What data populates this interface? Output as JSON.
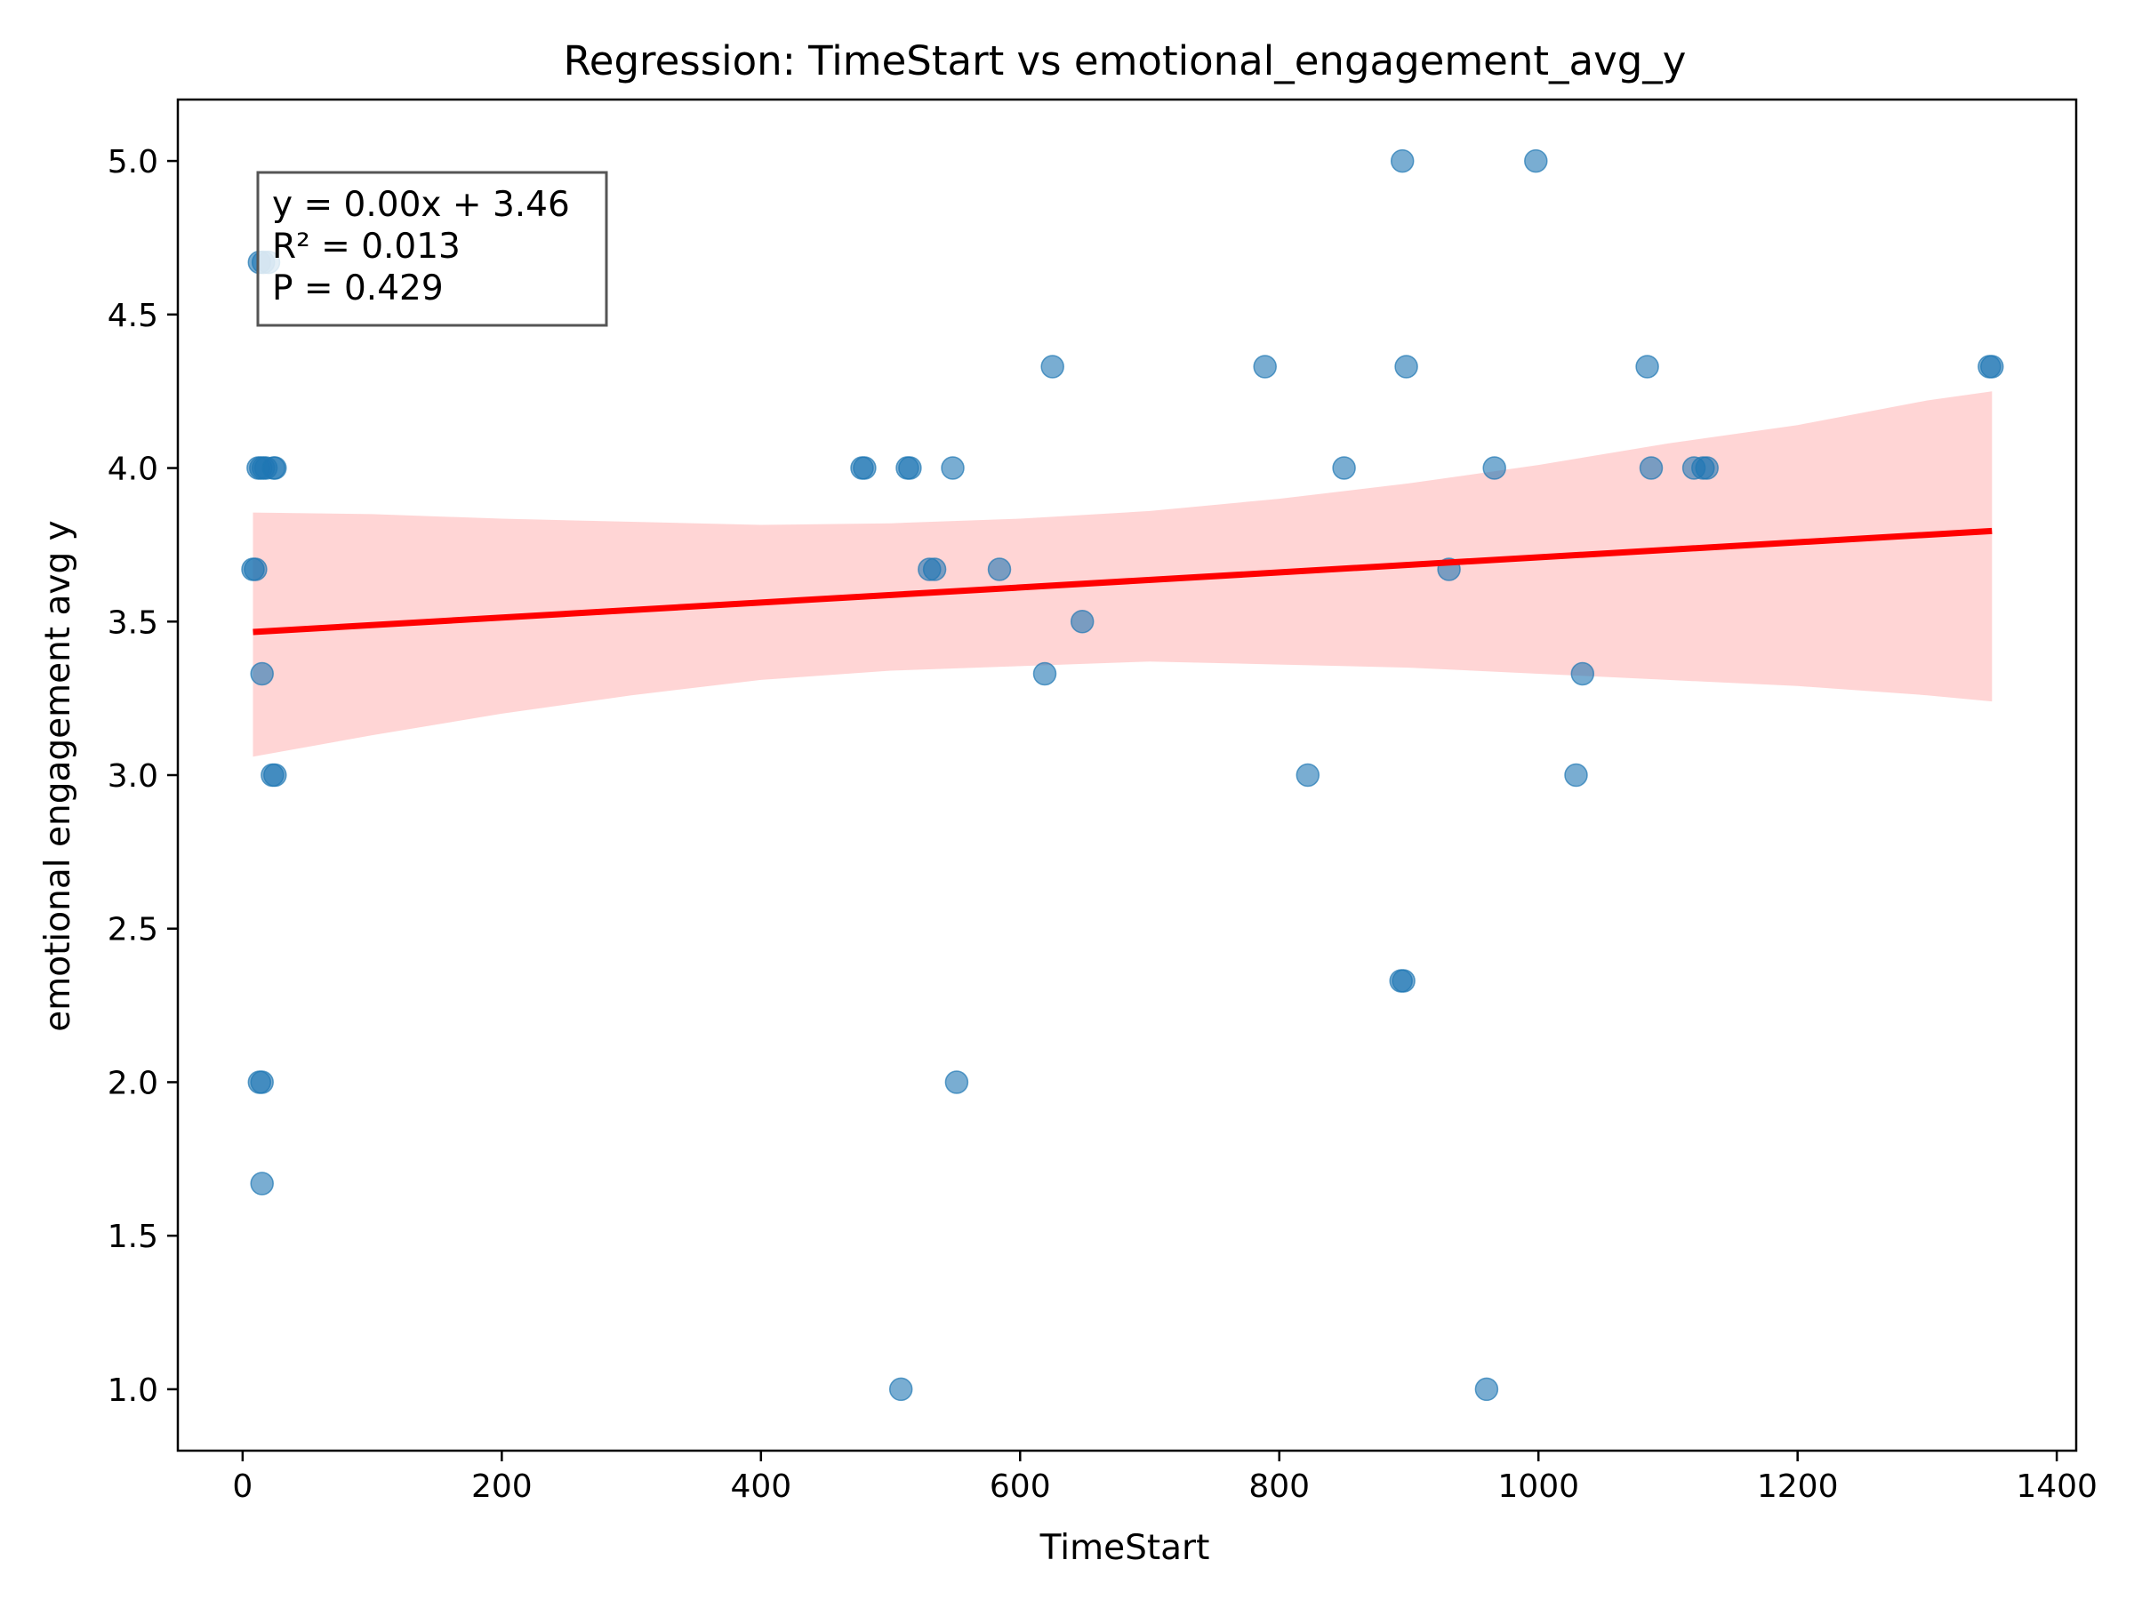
{
  "chart_data": {
    "type": "scatter",
    "title": "Regression: TimeStart vs emotional_engagement_avg_y",
    "xlabel": "TimeStart",
    "ylabel": "emotional engagement avg y",
    "xlim": [
      -50,
      1415
    ],
    "ylim": [
      0.8,
      5.2
    ],
    "xticks": [
      0,
      200,
      400,
      600,
      800,
      1000,
      1200,
      1400
    ],
    "yticks": [
      1.0,
      1.5,
      2.0,
      2.5,
      3.0,
      3.5,
      4.0,
      4.5,
      5.0
    ],
    "grid": false,
    "point_color": "#1f77b4",
    "point_opacity": 0.6,
    "line_color": "#ff0000",
    "band_color": "#ffb3b3",
    "points": [
      {
        "x": 8,
        "y": 3.67
      },
      {
        "x": 10,
        "y": 3.67
      },
      {
        "x": 12,
        "y": 4.0
      },
      {
        "x": 14,
        "y": 4.0
      },
      {
        "x": 16,
        "y": 4.0
      },
      {
        "x": 18,
        "y": 4.0
      },
      {
        "x": 24,
        "y": 4.0
      },
      {
        "x": 25,
        "y": 4.0
      },
      {
        "x": 13,
        "y": 4.67
      },
      {
        "x": 16,
        "y": 4.67
      },
      {
        "x": 20,
        "y": 4.67
      },
      {
        "x": 15,
        "y": 3.33
      },
      {
        "x": 23,
        "y": 3.0
      },
      {
        "x": 25,
        "y": 3.0
      },
      {
        "x": 13,
        "y": 2.0
      },
      {
        "x": 15,
        "y": 2.0
      },
      {
        "x": 15,
        "y": 1.67
      },
      {
        "x": 478,
        "y": 4.0
      },
      {
        "x": 480,
        "y": 4.0
      },
      {
        "x": 513,
        "y": 4.0
      },
      {
        "x": 515,
        "y": 4.0
      },
      {
        "x": 548,
        "y": 4.0
      },
      {
        "x": 508,
        "y": 1.0
      },
      {
        "x": 530,
        "y": 3.67
      },
      {
        "x": 534,
        "y": 3.67
      },
      {
        "x": 551,
        "y": 2.0
      },
      {
        "x": 584,
        "y": 3.67
      },
      {
        "x": 619,
        "y": 3.33
      },
      {
        "x": 625,
        "y": 4.33
      },
      {
        "x": 648,
        "y": 3.5
      },
      {
        "x": 789,
        "y": 4.33
      },
      {
        "x": 822,
        "y": 3.0
      },
      {
        "x": 850,
        "y": 4.0
      },
      {
        "x": 894,
        "y": 2.33
      },
      {
        "x": 896,
        "y": 2.33
      },
      {
        "x": 895,
        "y": 5.0
      },
      {
        "x": 898,
        "y": 4.33
      },
      {
        "x": 931,
        "y": 3.67
      },
      {
        "x": 960,
        "y": 1.0
      },
      {
        "x": 966,
        "y": 4.0
      },
      {
        "x": 998,
        "y": 5.0
      },
      {
        "x": 1029,
        "y": 3.0
      },
      {
        "x": 1034,
        "y": 3.33
      },
      {
        "x": 1084,
        "y": 4.33
      },
      {
        "x": 1087,
        "y": 4.0
      },
      {
        "x": 1120,
        "y": 4.0
      },
      {
        "x": 1127,
        "y": 4.0
      },
      {
        "x": 1130,
        "y": 4.0
      },
      {
        "x": 1348,
        "y": 4.33
      },
      {
        "x": 1350,
        "y": 4.33
      }
    ],
    "regression": {
      "x_start": 8,
      "x_end": 1350,
      "y_start": 3.466,
      "y_end": 3.795
    },
    "confidence_band": {
      "x": [
        8,
        100,
        200,
        300,
        400,
        500,
        600,
        700,
        800,
        900,
        1000,
        1100,
        1200,
        1300,
        1350
      ],
      "lower": [
        3.06,
        3.13,
        3.2,
        3.26,
        3.31,
        3.34,
        3.355,
        3.37,
        3.36,
        3.35,
        3.33,
        3.31,
        3.29,
        3.26,
        3.24
      ],
      "upper": [
        3.855,
        3.85,
        3.835,
        3.825,
        3.815,
        3.82,
        3.835,
        3.86,
        3.9,
        3.95,
        4.01,
        4.08,
        4.14,
        4.22,
        4.25
      ]
    },
    "annotation": {
      "lines": [
        "y = 0.00x + 3.46",
        "R² = 0.013",
        "P = 0.429"
      ]
    }
  }
}
